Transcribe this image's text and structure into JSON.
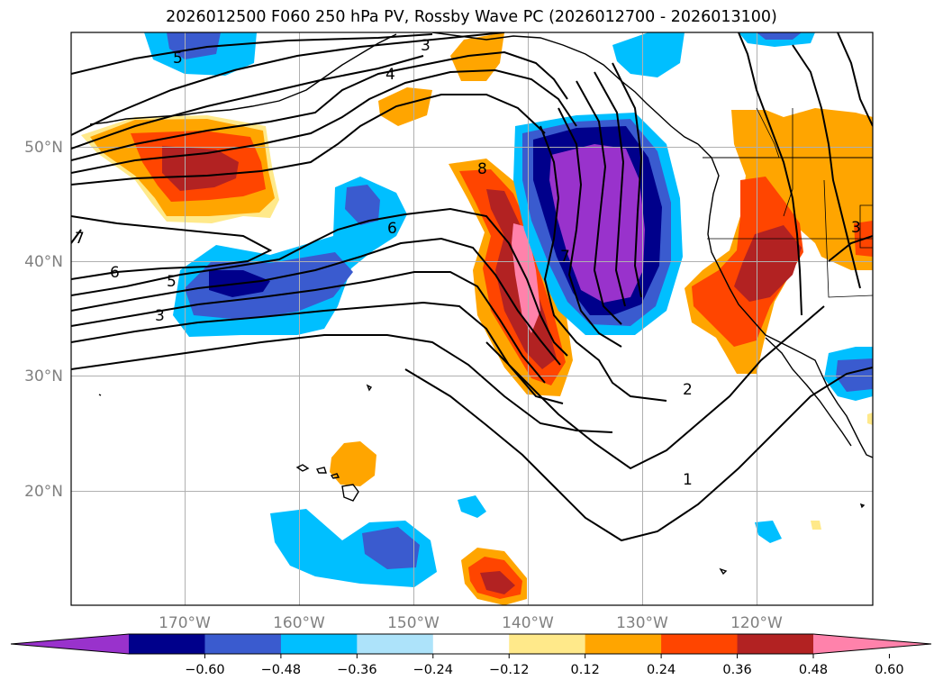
{
  "title": "2026012500 F060 250 hPa PV, Rossby Wave PC (2026012700 - 2026013100)",
  "lat_labels": [
    "50°N",
    "40°N",
    "30°N",
    "20°N"
  ],
  "lon_labels": [
    "170°W",
    "160°W",
    "150°W",
    "140°W",
    "130°W",
    "120°W"
  ],
  "contour_labels": [
    "5",
    "3",
    "4",
    "8",
    "6",
    "7",
    "6",
    "5",
    "3",
    "7",
    "2",
    "1",
    "3"
  ],
  "colorbar": {
    "ticks": [
      "−0.60",
      "−0.48",
      "−0.36",
      "−0.24",
      "−0.12",
      "0.12",
      "0.24",
      "0.36",
      "0.48",
      "0.60"
    ],
    "colors": [
      "#9932CC",
      "#00008B",
      "#3A5BCF",
      "#00BFFF",
      "#ADE3FA",
      "#FFFFFF",
      "#FFE98A",
      "#FFA500",
      "#FF4500",
      "#B22222",
      "#FF82AB"
    ]
  }
}
